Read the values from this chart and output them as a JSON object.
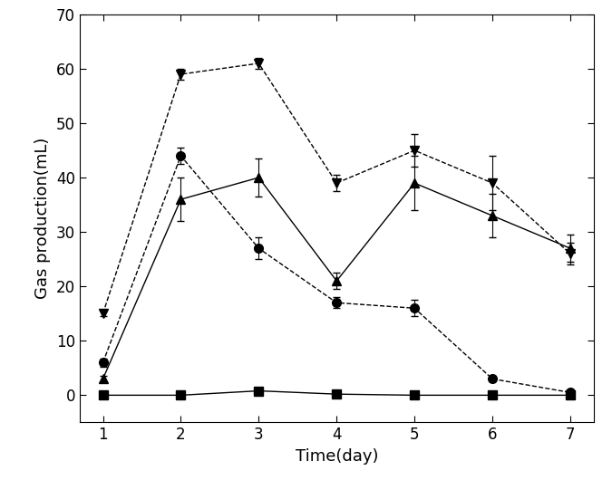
{
  "days": [
    1,
    2,
    3,
    4,
    5,
    6,
    7
  ],
  "series": [
    {
      "name": "series1_circle_dashed",
      "marker": "o",
      "linestyle": "--",
      "y": [
        6,
        44,
        27,
        17,
        16,
        3,
        0.5
      ],
      "yerr": [
        0.8,
        1.5,
        2.0,
        1.0,
        1.5,
        0.5,
        0.3
      ]
    },
    {
      "name": "series2_triangle_up_solid",
      "marker": "^",
      "linestyle": "-",
      "y": [
        3,
        36,
        40,
        21,
        39,
        33,
        27
      ],
      "yerr": [
        0.5,
        4.0,
        3.5,
        1.5,
        5.0,
        4.0,
        2.5
      ]
    },
    {
      "name": "series3_triangle_down_dashed",
      "marker": "v",
      "linestyle": "--",
      "y": [
        15,
        59,
        61,
        39,
        45,
        39,
        26
      ],
      "yerr": [
        0.5,
        1.0,
        1.0,
        1.5,
        3.0,
        5.0,
        2.0
      ]
    },
    {
      "name": "series4_square_solid",
      "marker": "s",
      "linestyle": "-",
      "y": [
        0,
        0,
        0.8,
        0.2,
        0,
        0,
        0
      ],
      "yerr": [
        0,
        0,
        0.2,
        0.1,
        0,
        0,
        0
      ]
    }
  ],
  "ylabel": "Gas production(mL)",
  "xlabel": "Time(day)",
  "ylim": [
    -5,
    70
  ],
  "yticks": [
    0,
    10,
    20,
    30,
    40,
    50,
    60,
    70
  ],
  "xticks": [
    1,
    2,
    3,
    4,
    5,
    6,
    7
  ],
  "color": "#000000",
  "markersize": 7,
  "linewidth": 1.0,
  "capsize": 3,
  "elinewidth": 0.8,
  "ylabel_fontsize": 13,
  "xlabel_fontsize": 13,
  "tick_labelsize": 12
}
